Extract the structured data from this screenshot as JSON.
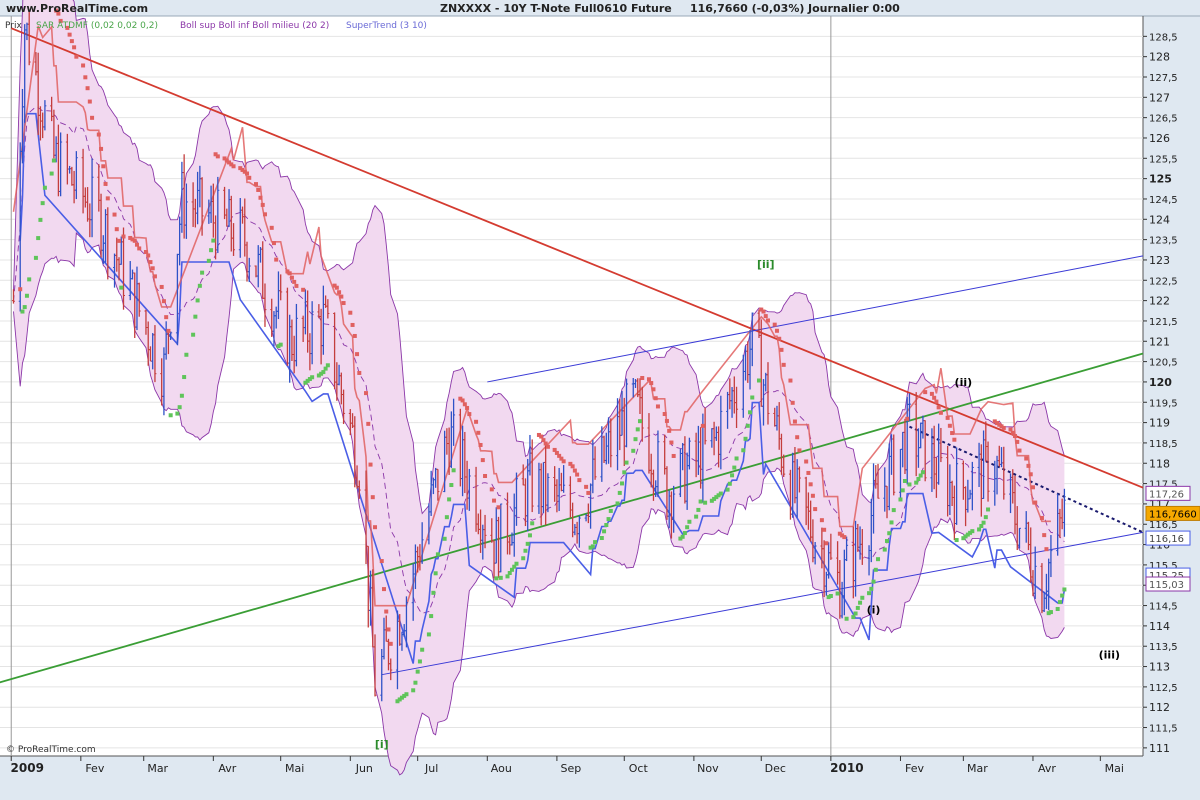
{
  "header": {
    "site": "www.ProRealTime.com",
    "title": "ZNXXXX - 10Y T-Note Full0610 Future",
    "quote": "116,7660 (-0,03%)",
    "period": "Journalier  0:00"
  },
  "legend": {
    "price_label": "Prix",
    "sar": "SAR ATDMF (0,02 0,02 0,2)",
    "boll": "Boll sup Boll inf Boll milieu (20 2)",
    "supertrend": "SuperTrend (3 10)"
  },
  "copyright": "© ProRealTime.com",
  "colors": {
    "bg": "#ffffff",
    "axis_bg": "#dfe8f1",
    "grid": "#e4e4e4",
    "bar_up": "#2f52c7",
    "bar_down": "#c43d3d",
    "boll_fill": "#f2d9f0",
    "boll_line": "#8b37a8",
    "sar_up": "#5fc45a",
    "sar_down": "#e06060",
    "supertrend": "#4a5ee6",
    "downtrend_line": "#d43b30",
    "uptrend_line": "#3a9e35",
    "channel_line": "#3a3ad6",
    "current_price": "#f5a800"
  },
  "chart_data": {
    "type": "ohlc",
    "instrument": "ZNXXXX - 10Y T-Note Full0610 Future",
    "last": "116,7660",
    "change": "-0,03%",
    "x_tick_labels": [
      "2009",
      "Fev",
      "Mar",
      "Avr",
      "Mai",
      "Jun",
      "Jul",
      "Aou",
      "Sep",
      "Oct",
      "Nov",
      "Dec",
      "2010",
      "Fev",
      "Mar",
      "Avr",
      "Mai"
    ],
    "y_tick_labels": [
      "128,5",
      "128",
      "127,5",
      "127",
      "126,5",
      "126",
      "125,5",
      "125",
      "124,5",
      "124",
      "123,5",
      "123",
      "122,5",
      "122",
      "121,5",
      "121",
      "120,5",
      "120",
      "119,5",
      "119",
      "118,5",
      "118",
      "117,5",
      "117",
      "116,5",
      "116",
      "115,5",
      "115",
      "114,5",
      "114",
      "113,5",
      "113",
      "112,5",
      "112",
      "111,5",
      "111"
    ],
    "ylim": [
      110.8,
      129
    ],
    "price_keypoints": [
      {
        "date": "2009-01-02",
        "price": 122.0
      },
      {
        "date": "2009-01-07",
        "price": 128.8
      },
      {
        "date": "2009-01-20",
        "price": 125.5
      },
      {
        "date": "2009-02-10",
        "price": 124.0
      },
      {
        "date": "2009-03-10",
        "price": 120.3
      },
      {
        "date": "2009-03-18",
        "price": 124.5
      },
      {
        "date": "2009-04-15",
        "price": 123.5
      },
      {
        "date": "2009-05-05",
        "price": 121.0
      },
      {
        "date": "2009-05-20",
        "price": 121.5
      },
      {
        "date": "2009-06-05",
        "price": 118.0
      },
      {
        "date": "2009-06-12",
        "price": 112.6
      },
      {
        "date": "2009-06-25",
        "price": 114.5
      },
      {
        "date": "2009-07-15",
        "price": 118.7
      },
      {
        "date": "2009-08-05",
        "price": 116.0
      },
      {
        "date": "2009-08-20",
        "price": 117.5
      },
      {
        "date": "2009-09-10",
        "price": 116.8
      },
      {
        "date": "2009-10-05",
        "price": 119.5
      },
      {
        "date": "2009-10-20",
        "price": 117.3
      },
      {
        "date": "2009-11-10",
        "price": 118.5
      },
      {
        "date": "2009-11-27",
        "price": 121.0
      },
      {
        "date": "2009-12-15",
        "price": 117.3
      },
      {
        "date": "2010-01-05",
        "price": 115.0
      },
      {
        "date": "2010-01-25",
        "price": 117.5
      },
      {
        "date": "2010-02-05",
        "price": 118.8
      },
      {
        "date": "2010-02-25",
        "price": 117.3
      },
      {
        "date": "2010-03-15",
        "price": 118.0
      },
      {
        "date": "2010-04-05",
        "price": 115.0
      },
      {
        "date": "2010-04-15",
        "price": 116.77
      }
    ],
    "price_tags": [
      {
        "label": "117,26",
        "value": 117.26,
        "style": "boll_up"
      },
      {
        "label": "116,7660",
        "value": 116.766,
        "style": "current"
      },
      {
        "label": "116,16",
        "value": 116.16,
        "style": "st"
      },
      {
        "label": "115,25",
        "value": 115.25,
        "style": "st"
      },
      {
        "label": "115,03",
        "value": 115.03,
        "style": "boll_dn"
      }
    ],
    "trendlines": [
      {
        "name": "downtrend-line",
        "from": {
          "date": "2009-01-01",
          "price": 128.7
        },
        "to": {
          "date": "2010-05-20",
          "price": 117.4
        }
      },
      {
        "name": "uptrend-line",
        "from": {
          "date": "2008-12-20",
          "price": 112.5
        },
        "to": {
          "date": "2010-05-20",
          "price": 120.7
        }
      },
      {
        "name": "channel-upper-line",
        "from": {
          "date": "2009-08-01",
          "price": 120.0
        },
        "to": {
          "date": "2010-05-20",
          "price": 123.1
        }
      },
      {
        "name": "channel-lower-line",
        "from": {
          "date": "2009-06-15",
          "price": 112.8
        },
        "to": {
          "date": "2010-05-20",
          "price": 116.3
        }
      },
      {
        "name": "dotted-trend-line",
        "from": {
          "date": "2010-02-05",
          "price": 118.9
        },
        "to": {
          "date": "2010-05-20",
          "price": 116.3
        }
      }
    ],
    "annotations": [
      {
        "text": "[ii]",
        "date": "2009-12-03",
        "price": 122.8,
        "color": "#2a8a2a"
      },
      {
        "text": "[i]",
        "date": "2009-06-15",
        "price": 111.0,
        "color": "#2a8a2a"
      },
      {
        "text": "(ii)",
        "date": "2010-03-01",
        "price": 119.9,
        "color": "#000000"
      },
      {
        "text": "(i)",
        "date": "2010-01-20",
        "price": 114.3,
        "color": "#000000"
      },
      {
        "text": "(iii)",
        "date": "2010-05-05",
        "price": 113.2,
        "color": "#000000"
      }
    ]
  }
}
